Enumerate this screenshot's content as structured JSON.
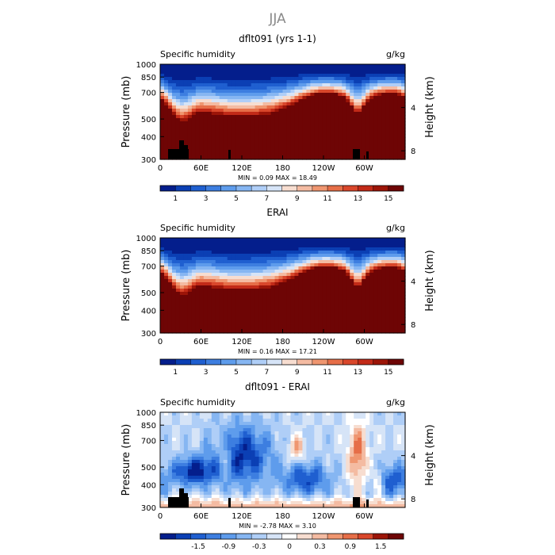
{
  "figure": {
    "title": "JJA"
  },
  "chart_data": [
    {
      "type": "heatmap",
      "title": "dflt091 (yrs 1-1)",
      "subtitle_left": "Specific humidity",
      "units": "g/kg",
      "ylabel": "Pressure (mb)",
      "ylabel_right": "Height (km)",
      "x_ticks": [
        "0",
        "60E",
        "120E",
        "180",
        "120W",
        "60W"
      ],
      "x_tick_lon": [
        0,
        60,
        120,
        180,
        240,
        300
      ],
      "xlim": [
        0,
        360
      ],
      "y_ticks": [
        "300",
        "400",
        "500",
        "700",
        "850",
        "1000"
      ],
      "y_tick_p": [
        300,
        400,
        500,
        700,
        850,
        1000
      ],
      "ylim": [
        1000,
        300
      ],
      "y_scale": "log",
      "right_ticks": [
        "8",
        "4"
      ],
      "stats": "MIN =    0.09   MAX =   18.49",
      "colorbar": {
        "labels": [
          "1",
          "3",
          "5",
          "7",
          "9",
          "11",
          "13",
          "15"
        ],
        "colors": [
          "#041e8c",
          "#0b3fb4",
          "#1f5fd0",
          "#3d7ee0",
          "#5e9cec",
          "#86b6f2",
          "#afcef7",
          "#d6e4f7",
          "#f7ddd0",
          "#f4bba2",
          "#ef9670",
          "#e66e48",
          "#d9472b",
          "#c22a18",
          "#9c1508",
          "#6e0505"
        ]
      },
      "terrain": true,
      "field": "mean"
    },
    {
      "type": "heatmap",
      "title": "ERAI",
      "subtitle_left": "Specific humidity",
      "units": "g/kg",
      "ylabel": "Pressure (mb)",
      "ylabel_right": "Height (km)",
      "x_ticks": [
        "0",
        "60E",
        "120E",
        "180",
        "120W",
        "60W"
      ],
      "x_tick_lon": [
        0,
        60,
        120,
        180,
        240,
        300
      ],
      "xlim": [
        0,
        360
      ],
      "y_ticks": [
        "300",
        "400",
        "500",
        "700",
        "850",
        "1000"
      ],
      "y_tick_p": [
        300,
        400,
        500,
        700,
        850,
        1000
      ],
      "ylim": [
        1000,
        300
      ],
      "y_scale": "log",
      "right_ticks": [
        "8",
        "4"
      ],
      "stats": "MIN =    0.16   MAX =   17.21",
      "colorbar": {
        "labels": [
          "1",
          "3",
          "5",
          "7",
          "9",
          "11",
          "13",
          "15"
        ],
        "colors": [
          "#041e8c",
          "#0b3fb4",
          "#1f5fd0",
          "#3d7ee0",
          "#5e9cec",
          "#86b6f2",
          "#afcef7",
          "#d6e4f7",
          "#f7ddd0",
          "#f4bba2",
          "#ef9670",
          "#e66e48",
          "#d9472b",
          "#c22a18",
          "#9c1508",
          "#6e0505"
        ]
      },
      "terrain": false,
      "field": "mean"
    },
    {
      "type": "heatmap",
      "title": "dflt091 - ERAI",
      "subtitle_left": "Specific humidity",
      "units": "g/kg",
      "ylabel": "Pressure (mb)",
      "ylabel_right": "Height (km)",
      "x_ticks": [
        "0",
        "60E",
        "120E",
        "180",
        "120W",
        "60W"
      ],
      "x_tick_lon": [
        0,
        60,
        120,
        180,
        240,
        300
      ],
      "xlim": [
        0,
        360
      ],
      "y_ticks": [
        "300",
        "400",
        "500",
        "700",
        "850",
        "1000"
      ],
      "y_tick_p": [
        300,
        400,
        500,
        700,
        850,
        1000
      ],
      "ylim": [
        1000,
        300
      ],
      "y_scale": "log",
      "right_ticks": [
        "8",
        "4"
      ],
      "stats": "MIN =   -2.78   MAX =    3.10",
      "colorbar": {
        "labels": [
          "-1.5",
          "-0.9",
          "-0.3",
          "0",
          "0.3",
          "0.9",
          "1.5"
        ],
        "colors": [
          "#041e8c",
          "#0b3fb4",
          "#1f5fd0",
          "#3d7ee0",
          "#5e9cec",
          "#86b6f2",
          "#afcef7",
          "#d6e4f7",
          "#ffffff",
          "#f7ddd0",
          "#f4bba2",
          "#ef9670",
          "#e66e48",
          "#d9472b",
          "#9c1508",
          "#6e0505"
        ]
      },
      "terrain": true,
      "field": "diff"
    }
  ]
}
